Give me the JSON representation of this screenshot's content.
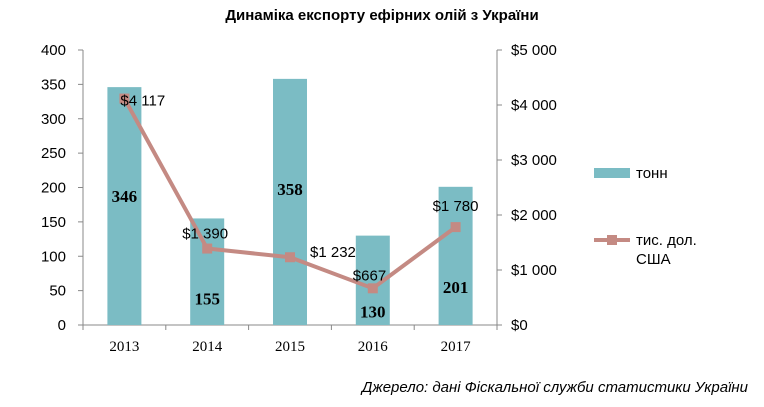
{
  "chart_data": {
    "type": "bar",
    "title": "Динаміка експорту ефірних олій з України",
    "categories": [
      "2013",
      "2014",
      "2015",
      "2016",
      "2017"
    ],
    "series": [
      {
        "name": "тонн",
        "type": "bar",
        "axis": "left",
        "values": [
          346,
          155,
          358,
          130,
          201
        ],
        "value_labels": [
          "346",
          "155",
          "358",
          "130",
          "201"
        ],
        "color": "#7bbcc4"
      },
      {
        "name": "тис. дол. США",
        "name_lines": [
          "тис. дол.",
          "США"
        ],
        "type": "line",
        "axis": "right",
        "values": [
          4117,
          1390,
          1232,
          667,
          1780
        ],
        "value_labels": [
          "$4 117",
          "$1 390",
          "$1 232",
          "$667",
          "$1 780"
        ],
        "color": "#c48a83"
      }
    ],
    "left_axis": {
      "min": 0,
      "max": 400,
      "step": 50,
      "tick_labels": [
        "0",
        "50",
        "100",
        "150",
        "200",
        "250",
        "300",
        "350",
        "400"
      ]
    },
    "right_axis": {
      "min": 0,
      "max": 5000,
      "step": 1000,
      "tick_labels": [
        "$0",
        "$1 000",
        "$2 000",
        "$3 000",
        "$4 000",
        "$5 000"
      ]
    },
    "grid": false,
    "legend_position": "right",
    "source": "Джерело: дані Фіскальної служби статистики України"
  }
}
